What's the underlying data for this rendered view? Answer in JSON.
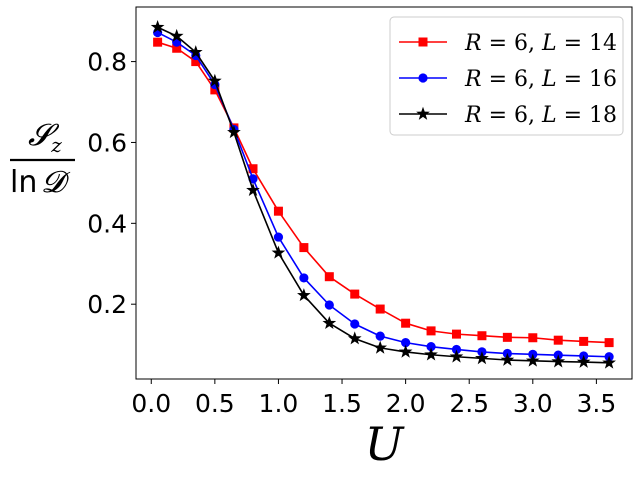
{
  "chart_data": {
    "type": "line",
    "title": "",
    "xlabel": "U",
    "ylabel": {
      "numerator": "𝓢",
      "numerator_sub": "z",
      "denominator_fn": "ln",
      "denominator_var": "𝓓"
    },
    "xlim": [
      -0.12,
      3.78
    ],
    "ylim": [
      0.015,
      0.935
    ],
    "xticks": [
      0.0,
      0.5,
      1.0,
      1.5,
      2.0,
      2.5,
      3.0,
      3.5
    ],
    "xtick_labels": [
      "0.0",
      "0.5",
      "1.0",
      "1.5",
      "2.0",
      "2.5",
      "3.0",
      "3.5"
    ],
    "yticks": [
      0.2,
      0.4,
      0.6,
      0.8
    ],
    "ytick_labels": [
      "0.2",
      "0.4",
      "0.6",
      "0.8"
    ],
    "x": [
      0.05,
      0.2,
      0.35,
      0.5,
      0.65,
      0.8,
      1.0,
      1.2,
      1.4,
      1.6,
      1.8,
      2.0,
      2.2,
      2.4,
      2.6,
      2.8,
      3.0,
      3.2,
      3.4,
      3.6
    ],
    "legend_position": "top-right",
    "series": [
      {
        "name": "R = 6, L = 14",
        "legend_parts": [
          "R",
          " = 6, ",
          "L",
          " = 14"
        ],
        "color": "#ff0000",
        "marker": "square",
        "values": [
          0.848,
          0.833,
          0.8,
          0.73,
          0.636,
          0.535,
          0.43,
          0.34,
          0.268,
          0.225,
          0.188,
          0.153,
          0.134,
          0.126,
          0.122,
          0.118,
          0.117,
          0.111,
          0.108,
          0.105
        ]
      },
      {
        "name": "R = 6, L = 16",
        "legend_parts": [
          "R",
          " = 6, ",
          "L",
          " = 16"
        ],
        "color": "#0000ff",
        "marker": "circle",
        "values": [
          0.872,
          0.848,
          0.815,
          0.743,
          0.632,
          0.51,
          0.366,
          0.265,
          0.198,
          0.151,
          0.121,
          0.105,
          0.095,
          0.088,
          0.082,
          0.078,
          0.076,
          0.074,
          0.072,
          0.07
        ]
      },
      {
        "name": "R = 6, L = 18",
        "legend_parts": [
          "R",
          " = 6, ",
          "L",
          " = 18"
        ],
        "color": "#000000",
        "marker": "star",
        "values": [
          0.885,
          0.863,
          0.823,
          0.752,
          0.625,
          0.482,
          0.327,
          0.222,
          0.153,
          0.115,
          0.092,
          0.082,
          0.075,
          0.07,
          0.066,
          0.062,
          0.06,
          0.058,
          0.057,
          0.055
        ]
      }
    ]
  }
}
